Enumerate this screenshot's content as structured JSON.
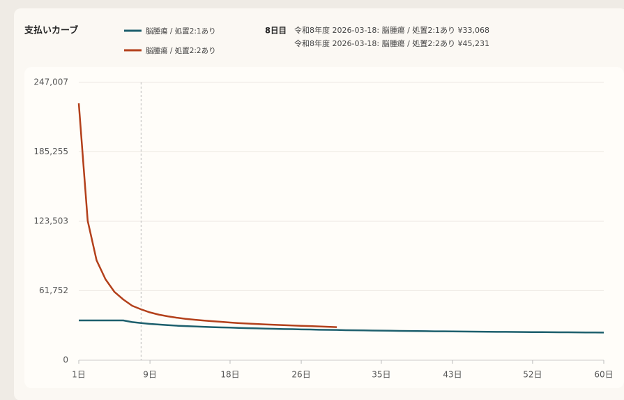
{
  "chart_data": {
    "type": "line",
    "title": "支払いカーブ",
    "tooltip": {
      "title": "8日目",
      "lines": [
        "令和8年度 2026-03-18: 脳腫瘍 / 処置2:1あり ¥33,068",
        "令和8年度 2026-03-18: 脳腫瘍 / 処置2:2あり ¥45,231"
      ]
    },
    "highlight_x": 8,
    "x": [
      1,
      2,
      3,
      4,
      5,
      6,
      7,
      8,
      9,
      10,
      11,
      12,
      13,
      14,
      15,
      16,
      17,
      18,
      19,
      20,
      21,
      22,
      23,
      24,
      25,
      26,
      27,
      28,
      29,
      30,
      31,
      32,
      33,
      34,
      35,
      36,
      37,
      38,
      39,
      40,
      41,
      42,
      43,
      44,
      45,
      46,
      47,
      48,
      49,
      50,
      51,
      52,
      53,
      54,
      55,
      56,
      57,
      58,
      59,
      60
    ],
    "series": [
      {
        "name": "脳腫瘍 / 処置2:1あり",
        "color": "#1d5f6d",
        "values": [
          35400,
          35400,
          35400,
          35400,
          35400,
          35400,
          33900,
          33068,
          32300,
          31700,
          31200,
          30700,
          30300,
          30000,
          29700,
          29400,
          29200,
          29000,
          28700,
          28500,
          28300,
          28100,
          27900,
          27700,
          27600,
          27400,
          27300,
          27100,
          27000,
          26900,
          26700,
          26600,
          26500,
          26400,
          26300,
          26200,
          26100,
          26000,
          25900,
          25800,
          25700,
          25650,
          25600,
          25500,
          25450,
          25400,
          25300,
          25250,
          25200,
          25100,
          25050,
          25000,
          24950,
          24900,
          24850,
          24800,
          24750,
          24700,
          24650,
          24600
        ]
      },
      {
        "name": "脳腫瘍 / 処置2:2あり",
        "color": "#b3401b",
        "values": [
          228400,
          124000,
          88800,
          72000,
          60800,
          54000,
          48400,
          45231,
          42500,
          40500,
          39000,
          37800,
          36800,
          36000,
          35300,
          34700,
          34100,
          33500,
          33000,
          32600,
          32200,
          31800,
          31500,
          31200,
          30900,
          30600,
          30300,
          30000,
          29700,
          29400,
          null,
          null,
          null,
          null,
          null,
          null,
          null,
          null,
          null,
          null,
          null,
          null,
          null,
          null,
          null,
          null,
          null,
          null,
          null,
          null,
          null,
          null,
          null,
          null,
          null,
          null,
          null,
          null,
          null,
          null
        ]
      }
    ],
    "xlim": [
      1,
      60
    ],
    "xticks": [
      {
        "value": 1,
        "label": "1日"
      },
      {
        "value": 9,
        "label": "9日"
      },
      {
        "value": 18,
        "label": "18日"
      },
      {
        "value": 26,
        "label": "26日"
      },
      {
        "value": 35,
        "label": "35日"
      },
      {
        "value": 43,
        "label": "43日"
      },
      {
        "value": 52,
        "label": "52日"
      },
      {
        "value": 60,
        "label": "60日"
      }
    ],
    "ylim": [
      0,
      247007
    ],
    "yticks": [
      0,
      {
        "value": 61752,
        "label": "61,752"
      },
      {
        "value": 123503,
        "label": "123,503"
      },
      {
        "value": 185255,
        "label": "185,255"
      },
      {
        "value": 247007,
        "label": "247,007"
      }
    ],
    "grid": true
  }
}
